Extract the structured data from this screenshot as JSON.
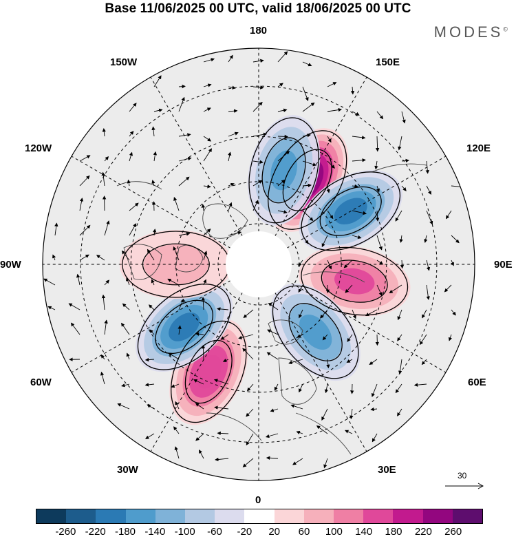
{
  "title": "Base 11/06/2025 00 UTC, valid 18/06/2025 00 UTC",
  "brand": "MODES",
  "brand_mark": "©",
  "longitude_labels": {
    "n180": "180",
    "e150": "150E",
    "e120": "120E",
    "e90": "90E",
    "e60": "60E",
    "e30": "30E",
    "zero": "0",
    "w30": "30W",
    "w60": "60W",
    "w90": "90W",
    "w120": "120W",
    "w150": "150W"
  },
  "vector_reference": "30",
  "colorbar": {
    "colors": [
      "#0d3a5c",
      "#1d5c8c",
      "#2b7ab4",
      "#4f9ccc",
      "#7fb2d8",
      "#b3c9e3",
      "#dcdcee",
      "#ffffff",
      "#fbd6d8",
      "#f6b0bb",
      "#ef7fa4",
      "#e0489a",
      "#c21a8e",
      "#93067f",
      "#5e0d6e"
    ],
    "tick_labels": [
      "-260",
      "-220",
      "-180",
      "-140",
      "-100",
      "-60",
      "-20",
      "20",
      "60",
      "100",
      "140",
      "180",
      "220",
      "260"
    ]
  },
  "anomaly_centers": [
    {
      "name": "positive-center-east-siberia",
      "value": 260,
      "lon": 150,
      "lat": 55
    },
    {
      "name": "negative-center-far-east",
      "value": -200,
      "lon": 120,
      "lat": 52
    },
    {
      "name": "negative-center-north-pacific",
      "value": -140,
      "lon": 165,
      "lat": 55
    },
    {
      "name": "positive-center-west-siberia",
      "value": 160,
      "lon": 80,
      "lat": 55
    },
    {
      "name": "negative-center-europe-russia",
      "value": -140,
      "lon": 40,
      "lat": 58
    },
    {
      "name": "positive-center-north-atlantic",
      "value": 180,
      "lon": -25,
      "lat": 48
    },
    {
      "name": "negative-center-labrador",
      "value": -180,
      "lon": -50,
      "lat": 55
    },
    {
      "name": "positive-center-hudson",
      "value": 80,
      "lon": -90,
      "lat": 60
    }
  ]
}
